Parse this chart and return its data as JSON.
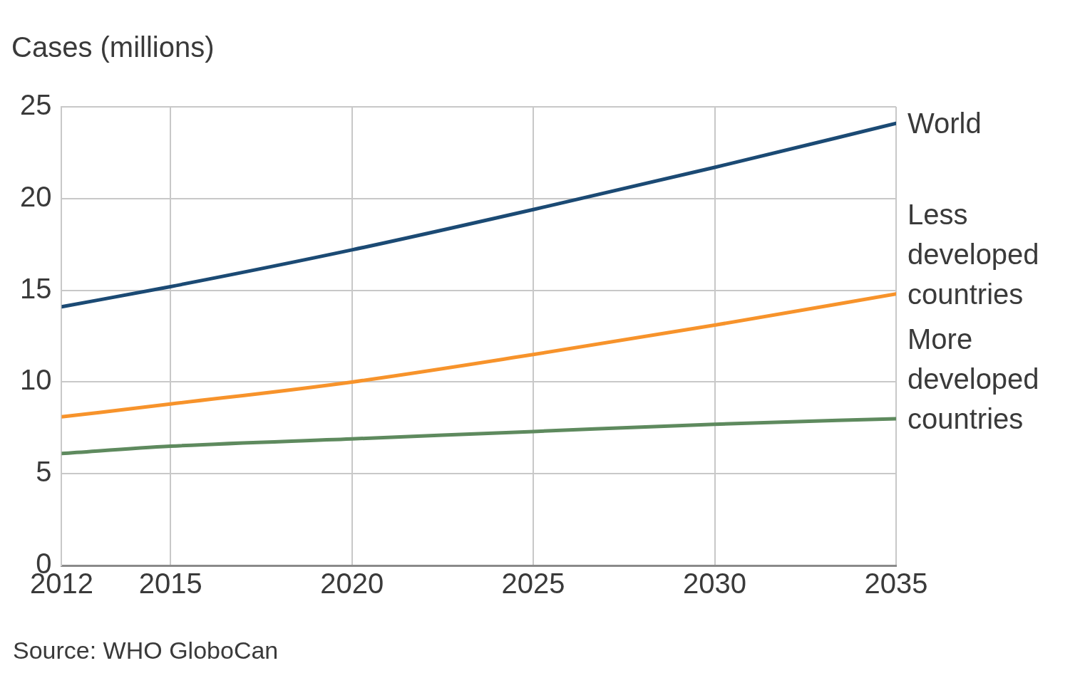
{
  "chart_data": {
    "type": "line",
    "ylabel": "Cases (millions)",
    "annotations": [
      "Source: WHO GloboCan"
    ],
    "x": [
      2012,
      2015,
      2020,
      2025,
      2030,
      2035
    ],
    "series": [
      {
        "name": "World",
        "color": "#1b4a74",
        "values": [
          14.1,
          15.2,
          17.2,
          19.4,
          21.7,
          24.1
        ]
      },
      {
        "name": "Less developed countries",
        "color": "#f7932b",
        "values": [
          8.1,
          8.8,
          10.0,
          11.5,
          13.1,
          14.8
        ]
      },
      {
        "name": "More developed countries",
        "color": "#5e8a5e",
        "values": [
          6.1,
          6.5,
          6.9,
          7.3,
          7.7,
          8.0
        ]
      }
    ],
    "xlim": [
      2012,
      2035
    ],
    "xticks": [
      2012,
      2015,
      2020,
      2025,
      2030,
      2035
    ],
    "ylim": [
      0,
      25
    ],
    "yticks": [
      0,
      5,
      10,
      15,
      20,
      25
    ],
    "grid": true,
    "legend": false,
    "marker": "none",
    "line_style": "solid"
  }
}
